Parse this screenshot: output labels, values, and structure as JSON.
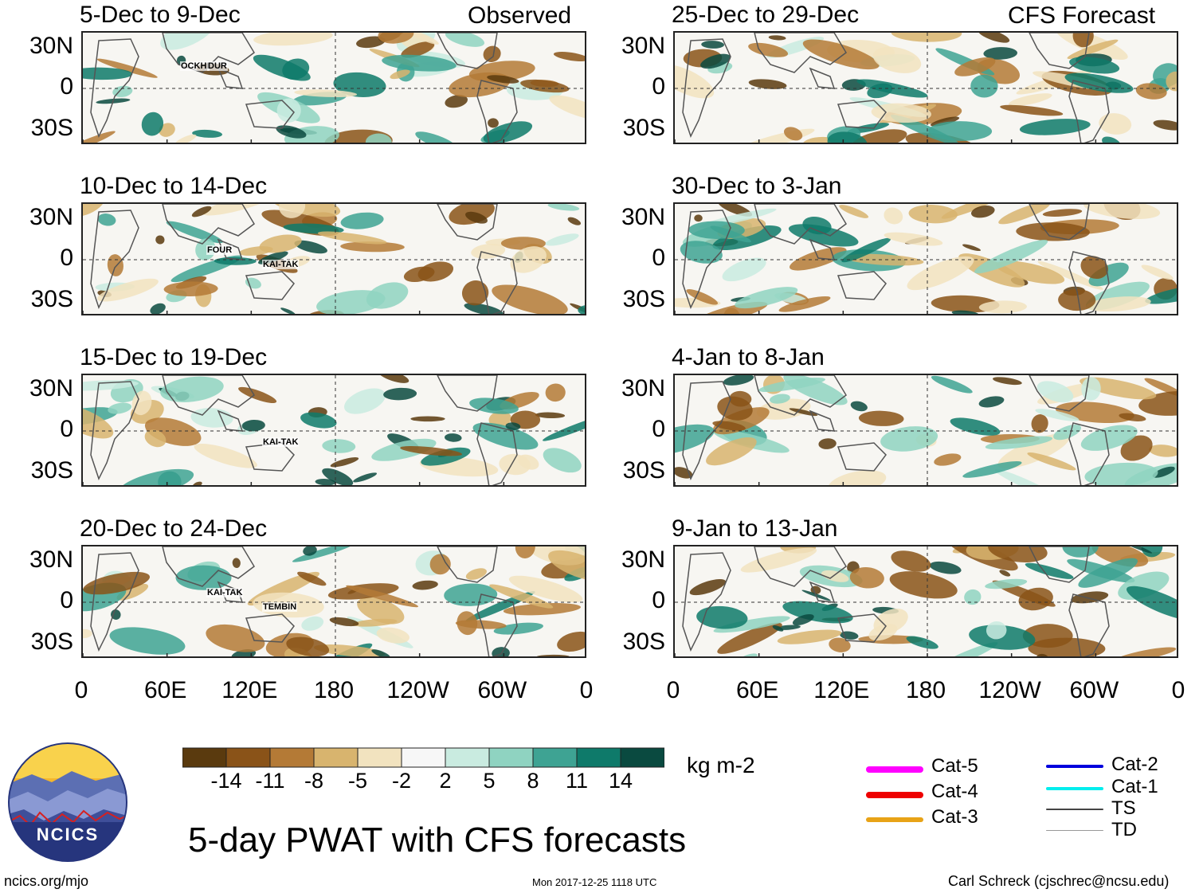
{
  "title": "5-day PWAT with CFS forecasts",
  "units": "kg m-2",
  "footer": {
    "left": "ncics.org/mjo",
    "center": "Mon 2017-12-25 1118 UTC",
    "right": "Carl Schreck (cjschrec@ncsu.edu)"
  },
  "logo_text": "NCICS",
  "column_labels": {
    "left": "Observed",
    "right": "CFS Forecast"
  },
  "lat_labels": [
    "30N",
    "0",
    "30S"
  ],
  "lon_labels": [
    "0",
    "60E",
    "120E",
    "180",
    "120W",
    "60W",
    "0"
  ],
  "panels_left": [
    {
      "title": "5-Dec to 9-Dec",
      "storms": [
        "OCKHI",
        "DUR"
      ]
    },
    {
      "title": "10-Dec to 14-Dec",
      "storms": [
        "FOUR",
        "KAI-TAK"
      ]
    },
    {
      "title": "15-Dec to 19-Dec",
      "storms": [
        "KAI-TAK"
      ]
    },
    {
      "title": "20-Dec to 24-Dec",
      "storms": [
        "KAI-TAK",
        "TEMBIN"
      ]
    }
  ],
  "panels_right": [
    {
      "title": "25-Dec to 29-Dec"
    },
    {
      "title": "30-Dec to 3-Jan"
    },
    {
      "title": "4-Jan to 8-Jan"
    },
    {
      "title": "9-Jan to 13-Jan"
    }
  ],
  "chart_data": {
    "type": "heatmap",
    "variable": "PWAT anomaly",
    "colorbar": {
      "ticks": [
        "-14",
        "-11",
        "-8",
        "-5",
        "-2",
        "2",
        "5",
        "8",
        "11",
        "14"
      ],
      "colors": [
        "#5a3a0e",
        "#8a5318",
        "#b47a36",
        "#d8b46e",
        "#f2e3bf",
        "#f7f7f7",
        "#c9ebe0",
        "#8fd3c1",
        "#3ea393",
        "#0e7a6a",
        "#0a4a40"
      ]
    },
    "xaxis": {
      "ticks": [
        "0",
        "60E",
        "120E",
        "180",
        "120W",
        "60W",
        "0"
      ]
    },
    "yaxis": {
      "ticks": [
        "30N",
        "0",
        "30S"
      ]
    }
  },
  "legend": [
    {
      "label": "Cat-5",
      "color": "#ff00ff"
    },
    {
      "label": "Cat-4",
      "color": "#ee0000"
    },
    {
      "label": "Cat-3",
      "color": "#e8a317"
    },
    {
      "label": "Cat-2",
      "color": "#0000dd"
    },
    {
      "label": "Cat-1",
      "color": "#00eeee"
    },
    {
      "label": "TS",
      "color": "#444444"
    },
    {
      "label": "TD",
      "color": "#999999"
    }
  ]
}
